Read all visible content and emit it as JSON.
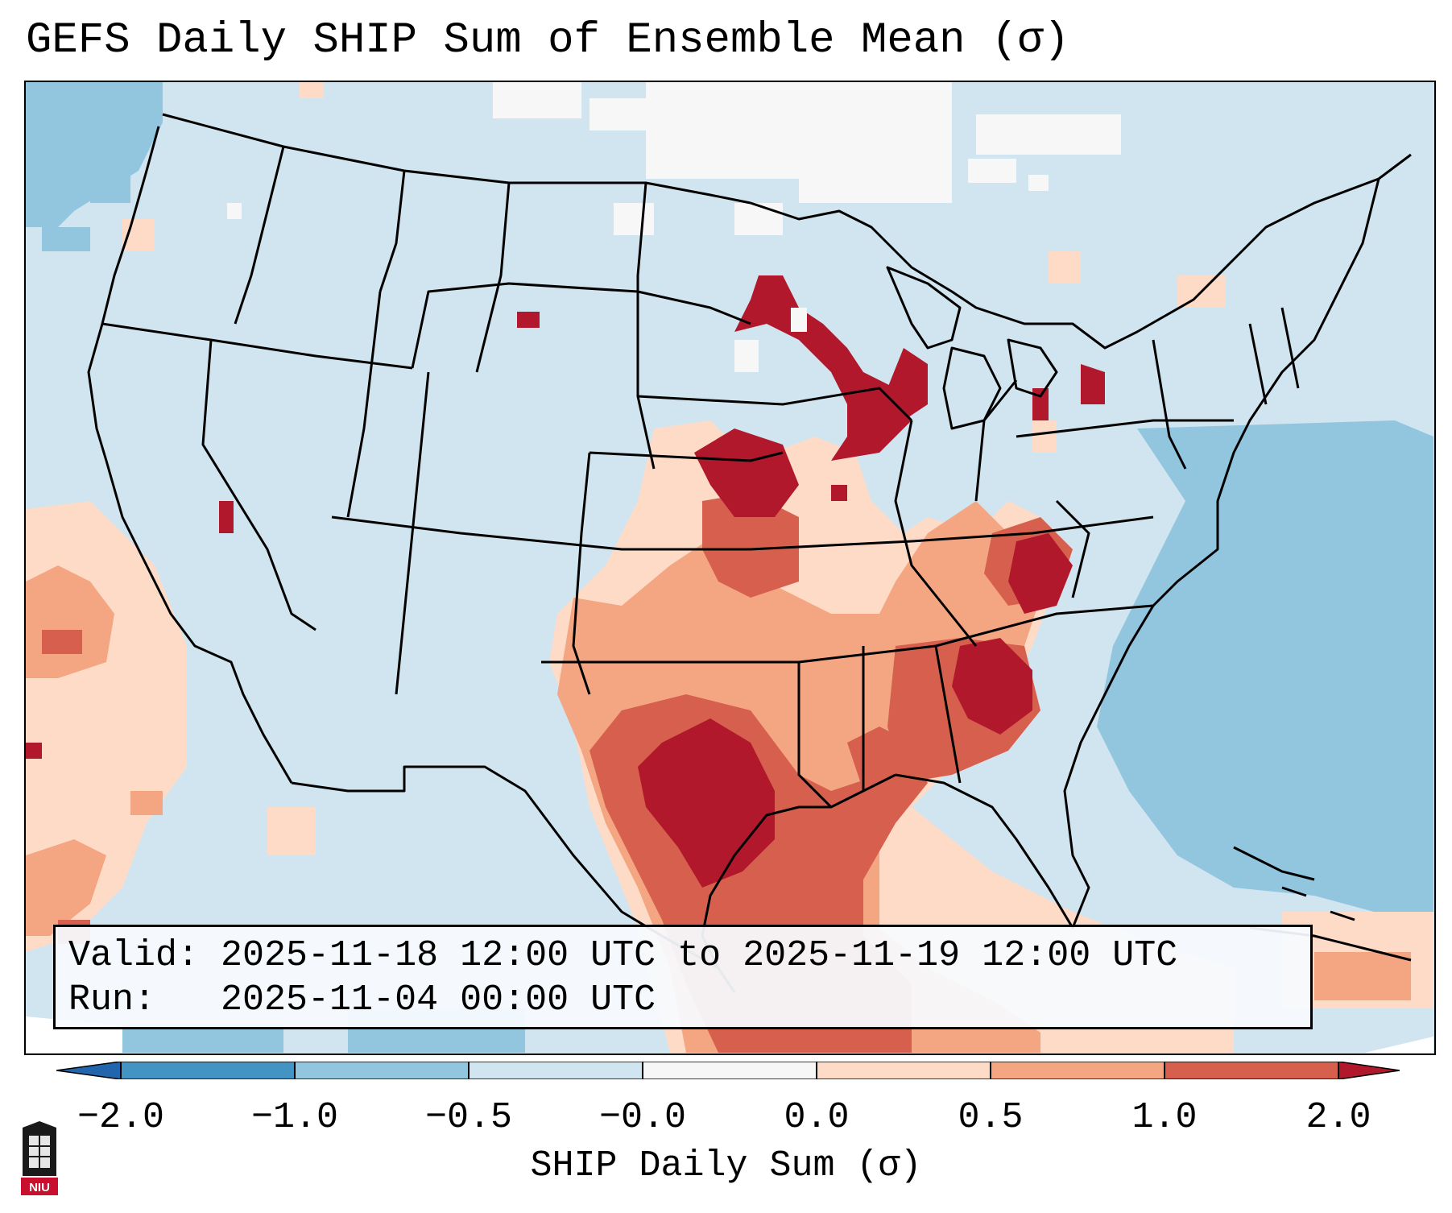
{
  "title": "GEFS Daily SHIP Sum of Ensemble Mean (σ)",
  "info": {
    "valid_line": "Valid: 2025-11-18 12:00 UTC to 2025-11-19 12:00 UTC",
    "run_line": "Run:   2025-11-04 00:00 UTC"
  },
  "colorbar": {
    "label": "SHIP Daily Sum (σ)",
    "ticks": [
      "−2.0",
      "−1.0",
      "−0.5",
      "−0.0",
      "0.0",
      "0.5",
      "1.0",
      "2.0"
    ],
    "colors": [
      "#2166ac",
      "#4393c3",
      "#92c5de",
      "#d1e5f0",
      "#f7f7f7",
      "#fddbc7",
      "#f4a582",
      "#d6604d",
      "#b2182b"
    ],
    "extend": "both"
  },
  "logo": {
    "text": "NIU"
  }
}
